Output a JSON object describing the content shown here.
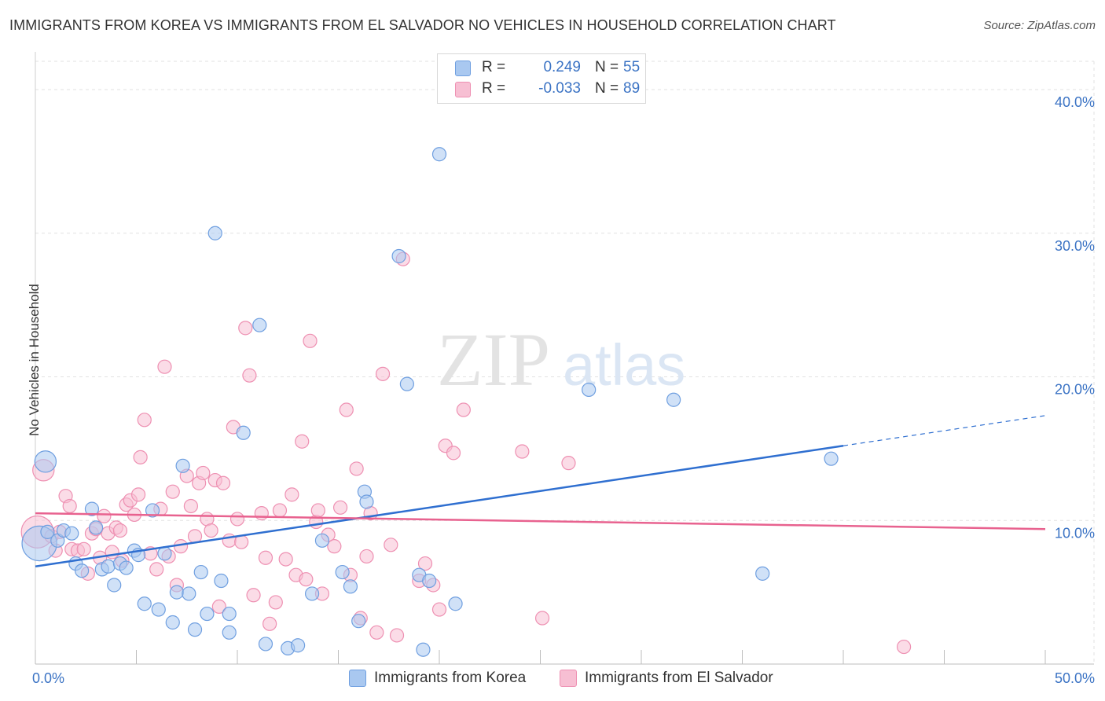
{
  "title": "IMMIGRANTS FROM KOREA VS IMMIGRANTS FROM EL SALVADOR NO VEHICLES IN HOUSEHOLD CORRELATION CHART",
  "source": "Source: ZipAtlas.com",
  "watermark": {
    "zip": "ZIP",
    "atlas": "atlas"
  },
  "colors": {
    "korea_fill": "#a9c8f0",
    "korea_stroke": "#6f9fe0",
    "korea_line": "#2f6fd0",
    "salvador_fill": "#f7bfd3",
    "salvador_stroke": "#ee90b2",
    "salvador_line": "#e8628f",
    "tick_label": "#3b73c4",
    "grid": "#e2e2e2"
  },
  "legend": {
    "r_label": "R =",
    "n_label": "N =",
    "korea": {
      "r": "0.249",
      "n": "55"
    },
    "salvador": {
      "r": "-0.033",
      "n": "89"
    }
  },
  "chart_data": {
    "type": "scatter",
    "title": "IMMIGRANTS FROM KOREA VS IMMIGRANTS FROM EL SALVADOR NO VEHICLES IN HOUSEHOLD CORRELATION CHART",
    "xlabel": "",
    "ylabel": "No Vehicles in Household",
    "xlim": [
      0,
      50
    ],
    "ylim": [
      0,
      40
    ],
    "x_tick_labels": [
      "0.0%",
      "50.0%"
    ],
    "y_ticks": [
      10,
      20,
      30,
      40
    ],
    "y_tick_labels": [
      "10.0%",
      "20.0%",
      "30.0%",
      "40.0%"
    ],
    "grid": true,
    "legend_placement": "top-center",
    "series": [
      {
        "name": "Immigrants from Korea",
        "r": 0.249,
        "n": 55,
        "trend": {
          "x0": 0,
          "y0": 6.8,
          "x1": 40,
          "y1": 15.2,
          "dashed_to_x": 50,
          "dashed_to_y": 17.3
        },
        "points": [
          [
            0.5,
            14.1,
            1.6
          ],
          [
            0.2,
            8.4,
            2.6
          ],
          [
            0.6,
            9.2,
            1
          ],
          [
            1.1,
            8.6,
            1
          ],
          [
            1.4,
            9.3,
            1
          ],
          [
            1.8,
            9.1,
            1
          ],
          [
            2.0,
            7.0,
            1
          ],
          [
            2.3,
            6.5,
            1
          ],
          [
            2.8,
            10.8,
            1
          ],
          [
            3.0,
            9.5,
            1
          ],
          [
            3.3,
            6.6,
            1
          ],
          [
            3.6,
            6.8,
            1
          ],
          [
            3.9,
            5.5,
            1
          ],
          [
            4.2,
            7.0,
            1
          ],
          [
            4.5,
            6.7,
            1
          ],
          [
            4.9,
            7.9,
            1
          ],
          [
            5.1,
            7.6,
            1
          ],
          [
            5.4,
            4.2,
            1
          ],
          [
            5.8,
            10.7,
            1
          ],
          [
            6.1,
            3.8,
            1
          ],
          [
            6.4,
            7.7,
            1
          ],
          [
            6.8,
            2.9,
            1
          ],
          [
            7.0,
            5.0,
            1
          ],
          [
            7.3,
            13.8,
            1
          ],
          [
            7.6,
            4.9,
            1
          ],
          [
            7.9,
            2.4,
            1
          ],
          [
            8.2,
            6.4,
            1
          ],
          [
            8.5,
            3.5,
            1
          ],
          [
            8.9,
            30.0,
            1
          ],
          [
            9.2,
            5.8,
            1
          ],
          [
            9.6,
            3.5,
            1
          ],
          [
            9.6,
            2.2,
            1
          ],
          [
            10.3,
            16.1,
            1
          ],
          [
            11.1,
            23.6,
            1
          ],
          [
            11.4,
            1.4,
            1
          ],
          [
            12.5,
            1.1,
            1
          ],
          [
            13.0,
            1.3,
            1
          ],
          [
            13.7,
            4.9,
            1
          ],
          [
            14.2,
            8.6,
            1
          ],
          [
            15.2,
            6.4,
            1
          ],
          [
            15.6,
            5.4,
            1
          ],
          [
            16.0,
            3.0,
            1
          ],
          [
            16.3,
            12.0,
            1
          ],
          [
            16.4,
            11.3,
            1
          ],
          [
            18.0,
            28.4,
            1
          ],
          [
            18.4,
            19.5,
            1
          ],
          [
            19.0,
            6.2,
            1
          ],
          [
            19.2,
            1.0,
            1
          ],
          [
            19.5,
            5.8,
            1
          ],
          [
            20.0,
            35.5,
            1
          ],
          [
            20.8,
            4.2,
            1
          ],
          [
            27.4,
            19.1,
            1
          ],
          [
            31.6,
            18.4,
            1
          ],
          [
            36.0,
            6.3,
            1
          ],
          [
            39.4,
            14.3,
            1
          ]
        ]
      },
      {
        "name": "Immigrants from El Salvador",
        "r": -0.033,
        "n": 89,
        "trend": {
          "x0": 0,
          "y0": 10.5,
          "x1": 50,
          "y1": 9.4
        },
        "points": [
          [
            0.1,
            9.2,
            2.4
          ],
          [
            0.4,
            13.5,
            1.6
          ],
          [
            0.8,
            8.9,
            1
          ],
          [
            1.0,
            7.9,
            1
          ],
          [
            1.2,
            9.2,
            1
          ],
          [
            1.5,
            11.7,
            1
          ],
          [
            1.7,
            11.0,
            1
          ],
          [
            1.8,
            8.0,
            1
          ],
          [
            2.1,
            7.9,
            1
          ],
          [
            2.4,
            8.0,
            1
          ],
          [
            2.6,
            6.3,
            1
          ],
          [
            2.8,
            9.1,
            1
          ],
          [
            3.0,
            9.4,
            1
          ],
          [
            3.2,
            7.4,
            1
          ],
          [
            3.4,
            10.3,
            1
          ],
          [
            3.6,
            9.1,
            1
          ],
          [
            3.8,
            7.8,
            1
          ],
          [
            4.0,
            9.5,
            1
          ],
          [
            4.2,
            9.3,
            1
          ],
          [
            4.3,
            7.2,
            1
          ],
          [
            4.5,
            11.1,
            1
          ],
          [
            4.7,
            11.4,
            1
          ],
          [
            4.9,
            10.4,
            1
          ],
          [
            5.1,
            11.8,
            1
          ],
          [
            5.2,
            14.4,
            1
          ],
          [
            5.4,
            17.0,
            1
          ],
          [
            5.7,
            7.7,
            1
          ],
          [
            6.0,
            6.6,
            1
          ],
          [
            6.2,
            10.8,
            1
          ],
          [
            6.4,
            20.7,
            1
          ],
          [
            6.6,
            7.5,
            1
          ],
          [
            6.8,
            12.0,
            1
          ],
          [
            7.0,
            5.5,
            1
          ],
          [
            7.2,
            8.2,
            1
          ],
          [
            7.5,
            13.1,
            1
          ],
          [
            7.7,
            11.0,
            1
          ],
          [
            7.9,
            8.9,
            1
          ],
          [
            8.1,
            12.6,
            1
          ],
          [
            8.3,
            13.3,
            1
          ],
          [
            8.5,
            10.1,
            1
          ],
          [
            8.7,
            9.3,
            1
          ],
          [
            8.9,
            12.8,
            1
          ],
          [
            9.1,
            4.0,
            1
          ],
          [
            9.3,
            12.6,
            1
          ],
          [
            9.6,
            8.6,
            1
          ],
          [
            9.8,
            16.5,
            1
          ],
          [
            10.0,
            10.1,
            1
          ],
          [
            10.2,
            8.5,
            1
          ],
          [
            10.4,
            23.4,
            1
          ],
          [
            10.6,
            20.1,
            1
          ],
          [
            10.8,
            4.8,
            1
          ],
          [
            11.2,
            10.5,
            1
          ],
          [
            11.4,
            7.4,
            1
          ],
          [
            11.6,
            2.8,
            1
          ],
          [
            11.9,
            4.3,
            1
          ],
          [
            12.1,
            10.7,
            1
          ],
          [
            12.4,
            7.3,
            1
          ],
          [
            12.7,
            11.8,
            1
          ],
          [
            12.9,
            6.2,
            1
          ],
          [
            13.2,
            15.5,
            1
          ],
          [
            13.4,
            5.9,
            1
          ],
          [
            13.6,
            22.5,
            1
          ],
          [
            13.9,
            9.9,
            1
          ],
          [
            14.0,
            10.7,
            1
          ],
          [
            14.2,
            4.9,
            1
          ],
          [
            14.5,
            9.0,
            1
          ],
          [
            14.8,
            8.2,
            1
          ],
          [
            15.1,
            10.9,
            1
          ],
          [
            15.4,
            17.7,
            1
          ],
          [
            15.6,
            6.2,
            1
          ],
          [
            15.9,
            13.6,
            1
          ],
          [
            16.1,
            3.2,
            1
          ],
          [
            16.4,
            7.5,
            1
          ],
          [
            16.6,
            10.5,
            1
          ],
          [
            16.9,
            2.2,
            1
          ],
          [
            17.2,
            20.2,
            1
          ],
          [
            17.6,
            8.3,
            1
          ],
          [
            17.9,
            2.0,
            1
          ],
          [
            18.2,
            28.2,
            1
          ],
          [
            19.0,
            5.8,
            1
          ],
          [
            19.3,
            7.0,
            1
          ],
          [
            19.7,
            5.5,
            1
          ],
          [
            20.0,
            3.8,
            1
          ],
          [
            20.3,
            15.2,
            1
          ],
          [
            20.7,
            14.7,
            1
          ],
          [
            21.2,
            17.7,
            1
          ],
          [
            24.1,
            14.8,
            1
          ],
          [
            25.1,
            3.2,
            1
          ],
          [
            26.4,
            14.0,
            1
          ],
          [
            43.0,
            1.2,
            1
          ]
        ]
      }
    ],
    "x_axis_extra_ticks": [
      0,
      5,
      10,
      15,
      20,
      25,
      30,
      35,
      40,
      45,
      50
    ]
  },
  "bottom_legend": {
    "korea": "Immigrants from Korea",
    "salvador": "Immigrants from El Salvador"
  }
}
